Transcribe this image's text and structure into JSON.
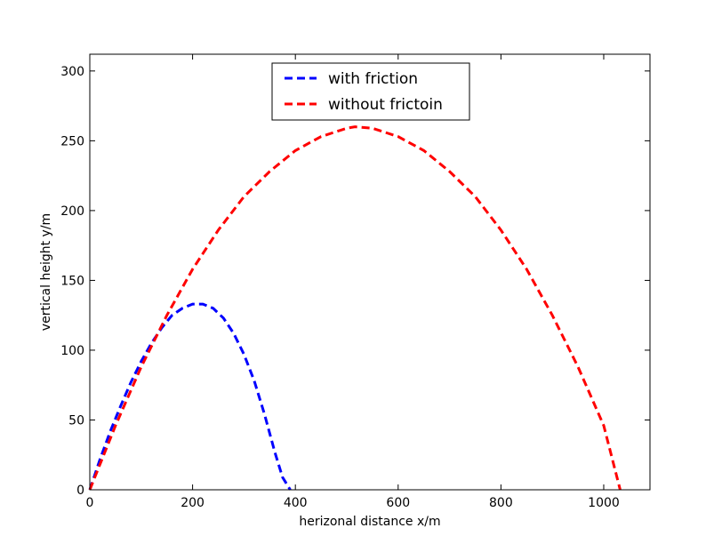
{
  "chart_data": {
    "type": "line",
    "title": "",
    "xlabel": "herizonal distance x/m",
    "ylabel": "vertical height y/m",
    "xlim": [
      0,
      1090
    ],
    "ylim": [
      0,
      312
    ],
    "xticks": [
      0,
      200,
      400,
      600,
      800,
      1000
    ],
    "yticks": [
      0,
      50,
      100,
      150,
      200,
      250,
      300
    ],
    "grid": false,
    "legend_position": "upper center",
    "series": [
      {
        "name": "with friction",
        "color": "#0000ff",
        "style": "dashed",
        "x": [
          0,
          20,
          40,
          60,
          80,
          100,
          120,
          140,
          160,
          180,
          200,
          220,
          240,
          260,
          280,
          300,
          320,
          340,
          360,
          375,
          390
        ],
        "y": [
          0,
          22,
          42,
          60,
          77,
          92,
          105,
          116,
          125,
          130,
          133,
          133,
          130,
          123,
          112,
          97,
          78,
          54,
          27,
          9,
          0
        ]
      },
      {
        "name": "without frictoin",
        "color": "#ff0000",
        "style": "dashed",
        "x": [
          0,
          50,
          100,
          150,
          200,
          250,
          300,
          350,
          400,
          450,
          500,
          516,
          550,
          600,
          650,
          700,
          750,
          800,
          850,
          900,
          950,
          1000,
          1032
        ],
        "y": [
          0,
          46,
          88,
          125,
          158,
          186,
          210,
          228,
          243,
          253,
          259,
          260,
          259,
          253,
          243,
          228,
          210,
          186,
          158,
          125,
          88,
          46,
          0
        ]
      }
    ]
  }
}
